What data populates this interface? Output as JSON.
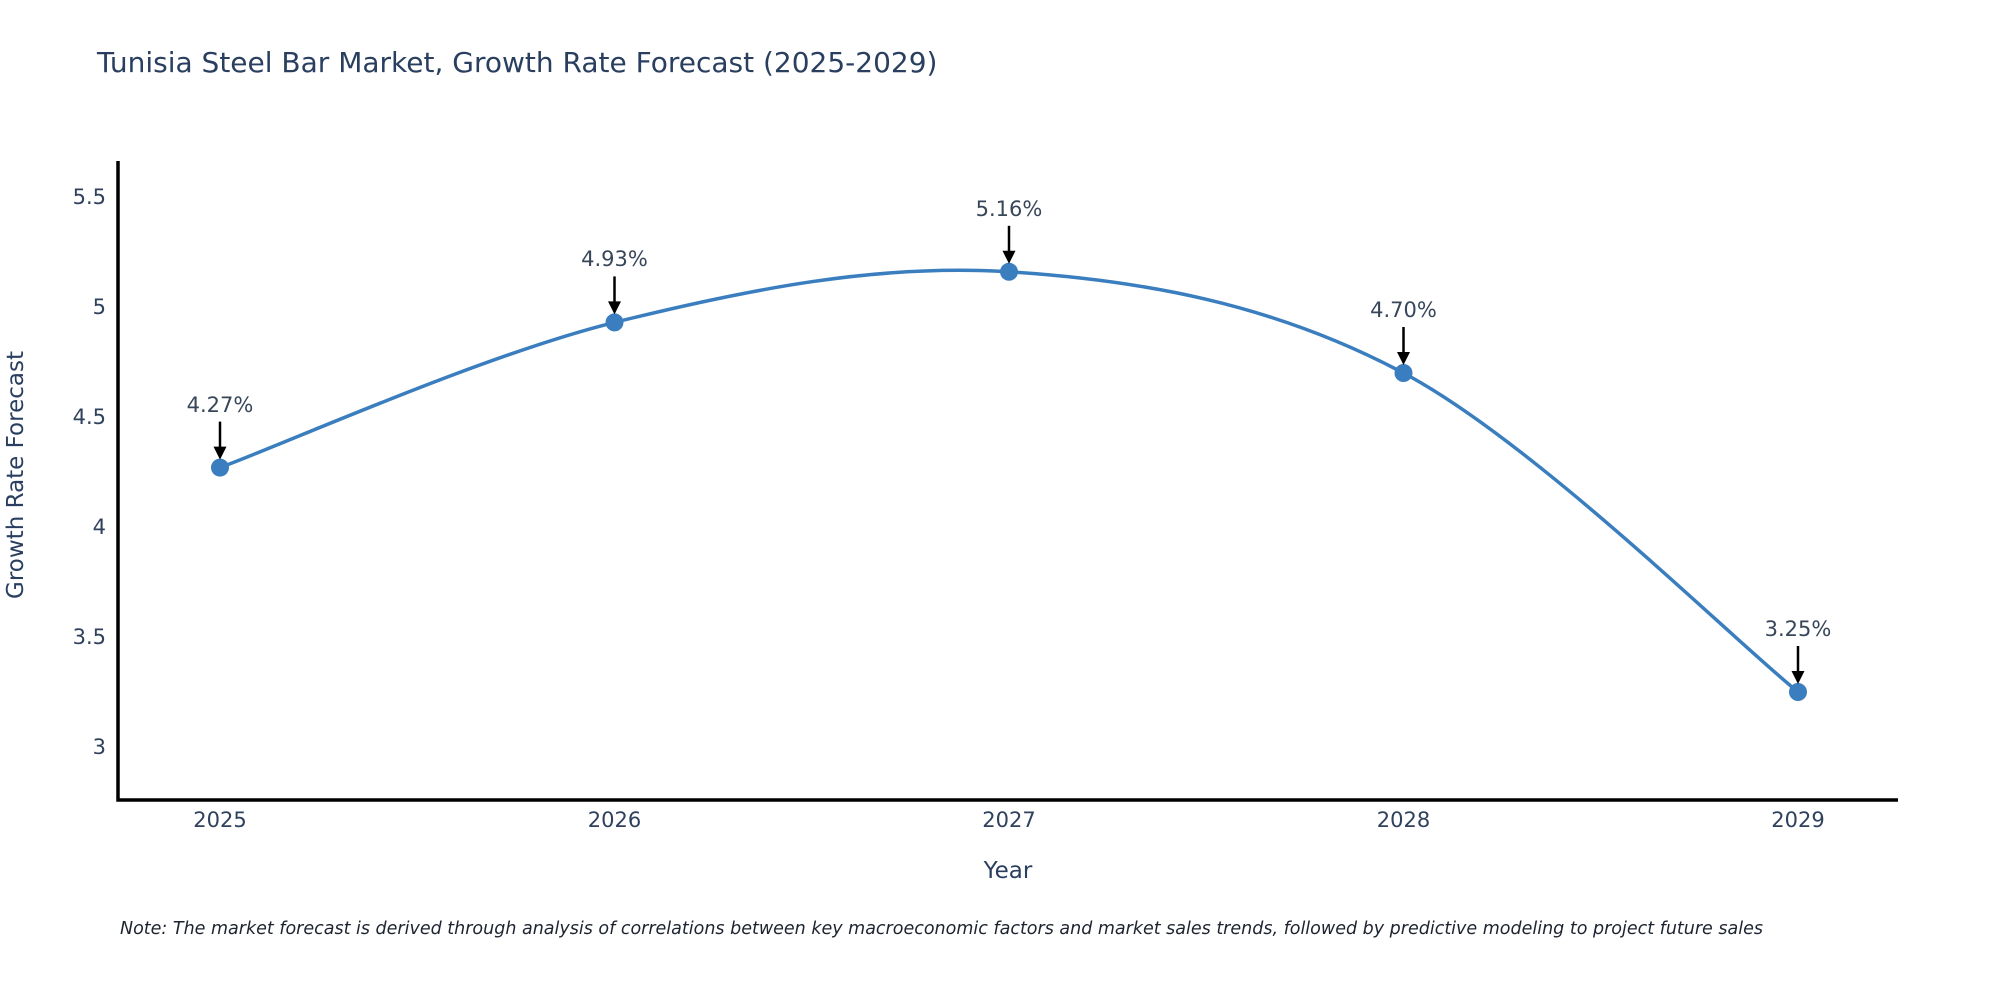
{
  "title": "Tunisia Steel Bar Market, Growth Rate Forecast (2025-2029)",
  "note": "Note: The market forecast is derived through analysis of correlations between key macroeconomic factors and market sales trends, followed by predictive modeling to project future sales",
  "chart_data": {
    "type": "line",
    "title": "Tunisia Steel Bar Market, Growth Rate Forecast (2025-2029)",
    "x": [
      "2025",
      "2026",
      "2027",
      "2028",
      "2029"
    ],
    "series": [
      {
        "name": "Growth Rate Forecast",
        "values": [
          4.27,
          4.93,
          5.16,
          4.7,
          3.25
        ]
      }
    ],
    "point_labels": [
      "4.27%",
      "4.93%",
      "5.16%",
      "4.70%",
      "3.25%"
    ],
    "xlabel": "Year",
    "ylabel": "Growth Rate Forecast",
    "y_ticks": [
      5.5,
      5,
      4.5,
      4,
      3.5,
      3
    ],
    "ylim": [
      2.76,
      5.66
    ],
    "grid": false,
    "legend": "none",
    "line_shape": "spline",
    "line_color": "#3a7ebf",
    "marker_color": "#3a7ebf",
    "axis_color": "#000000",
    "annotation_arrow_color": "#000000",
    "text_color": "#2a3f5f"
  }
}
